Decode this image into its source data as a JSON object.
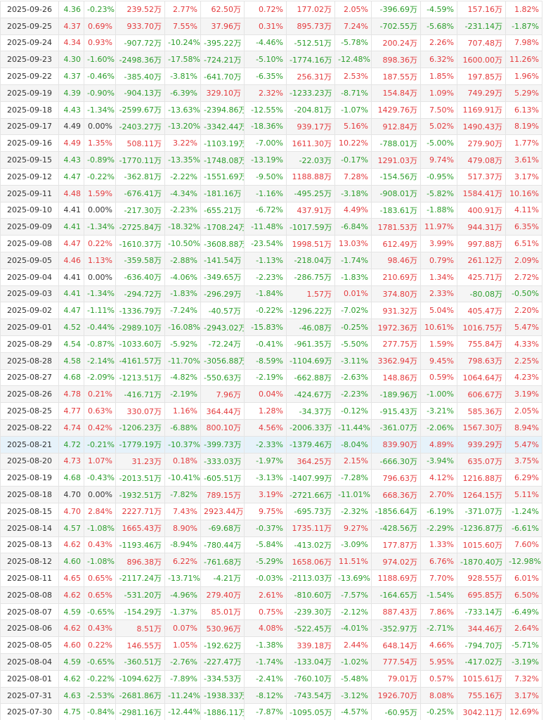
{
  "table": {
    "highlight_row": 26,
    "rows": [
      [
        "2025-09-26",
        "4.36",
        "-0.23%",
        "239.52万",
        "2.77%",
        "62.50万",
        "0.72%",
        "177.02万",
        "2.05%",
        "-396.69万",
        "-4.59%",
        "157.16万",
        "1.82%"
      ],
      [
        "2025-09-25",
        "4.37",
        "0.69%",
        "933.70万",
        "7.55%",
        "37.96万",
        "0.31%",
        "895.73万",
        "7.24%",
        "-702.55万",
        "-5.68%",
        "-231.14万",
        "-1.87%"
      ],
      [
        "2025-09-24",
        "4.34",
        "0.93%",
        "-907.72万",
        "-10.24%",
        "-395.22万",
        "-4.46%",
        "-512.51万",
        "-5.78%",
        "200.24万",
        "2.26%",
        "707.48万",
        "7.98%"
      ],
      [
        "2025-09-23",
        "4.30",
        "-1.60%",
        "-2498.36万",
        "-17.58%",
        "-724.21万",
        "-5.10%",
        "-1774.16万",
        "-12.48%",
        "898.36万",
        "6.32%",
        "1600.00万",
        "11.26%"
      ],
      [
        "2025-09-22",
        "4.37",
        "-0.46%",
        "-385.40万",
        "-3.81%",
        "-641.70万",
        "-6.35%",
        "256.31万",
        "2.53%",
        "187.55万",
        "1.85%",
        "197.85万",
        "1.96%"
      ],
      [
        "2025-09-19",
        "4.39",
        "-0.90%",
        "-904.13万",
        "-6.39%",
        "329.10万",
        "2.32%",
        "-1233.23万",
        "-8.71%",
        "154.84万",
        "1.09%",
        "749.29万",
        "5.29%"
      ],
      [
        "2025-09-18",
        "4.43",
        "-1.34%",
        "-2599.67万",
        "-13.63%",
        "-2394.86万",
        "-12.55%",
        "-204.81万",
        "-1.07%",
        "1429.76万",
        "7.50%",
        "1169.91万",
        "6.13%"
      ],
      [
        "2025-09-17",
        "4.49",
        "0.00%",
        "-2403.27万",
        "-13.20%",
        "-3342.44万",
        "-18.36%",
        "939.17万",
        "5.16%",
        "912.84万",
        "5.02%",
        "1490.43万",
        "8.19%"
      ],
      [
        "2025-09-16",
        "4.49",
        "1.35%",
        "508.11万",
        "3.22%",
        "-1103.19万",
        "-7.00%",
        "1611.30万",
        "10.22%",
        "-788.01万",
        "-5.00%",
        "279.90万",
        "1.77%"
      ],
      [
        "2025-09-15",
        "4.43",
        "-0.89%",
        "-1770.11万",
        "-13.35%",
        "-1748.08万",
        "-13.19%",
        "-22.03万",
        "-0.17%",
        "1291.03万",
        "9.74%",
        "479.08万",
        "3.61%"
      ],
      [
        "2025-09-12",
        "4.47",
        "-0.22%",
        "-362.81万",
        "-2.22%",
        "-1551.69万",
        "-9.50%",
        "1188.88万",
        "7.28%",
        "-154.56万",
        "-0.95%",
        "517.37万",
        "3.17%"
      ],
      [
        "2025-09-11",
        "4.48",
        "1.59%",
        "-676.41万",
        "-4.34%",
        "-181.16万",
        "-1.16%",
        "-495.25万",
        "-3.18%",
        "-908.01万",
        "-5.82%",
        "1584.41万",
        "10.16%"
      ],
      [
        "2025-09-10",
        "4.41",
        "0.00%",
        "-217.30万",
        "-2.23%",
        "-655.21万",
        "-6.72%",
        "437.91万",
        "4.49%",
        "-183.61万",
        "-1.88%",
        "400.91万",
        "4.11%"
      ],
      [
        "2025-09-09",
        "4.41",
        "-1.34%",
        "-2725.84万",
        "-18.32%",
        "-1708.24万",
        "-11.48%",
        "-1017.59万",
        "-6.84%",
        "1781.53万",
        "11.97%",
        "944.31万",
        "6.35%"
      ],
      [
        "2025-09-08",
        "4.47",
        "0.22%",
        "-1610.37万",
        "-10.50%",
        "-3608.88万",
        "-23.54%",
        "1998.51万",
        "13.03%",
        "612.49万",
        "3.99%",
        "997.88万",
        "6.51%"
      ],
      [
        "2025-09-05",
        "4.46",
        "1.13%",
        "-359.58万",
        "-2.88%",
        "-141.54万",
        "-1.13%",
        "-218.04万",
        "-1.74%",
        "98.46万",
        "0.79%",
        "261.12万",
        "2.09%"
      ],
      [
        "2025-09-04",
        "4.41",
        "0.00%",
        "-636.40万",
        "-4.06%",
        "-349.65万",
        "-2.23%",
        "-286.75万",
        "-1.83%",
        "210.69万",
        "1.34%",
        "425.71万",
        "2.72%"
      ],
      [
        "2025-09-03",
        "4.41",
        "-1.34%",
        "-294.72万",
        "-1.83%",
        "-296.29万",
        "-1.84%",
        "1.57万",
        "0.01%",
        "374.80万",
        "2.33%",
        "-80.08万",
        "-0.50%"
      ],
      [
        "2025-09-02",
        "4.47",
        "-1.11%",
        "-1336.79万",
        "-7.24%",
        "-40.57万",
        "-0.22%",
        "-1296.22万",
        "-7.02%",
        "931.32万",
        "5.04%",
        "405.47万",
        "2.20%"
      ],
      [
        "2025-09-01",
        "4.52",
        "-0.44%",
        "-2989.10万",
        "-16.08%",
        "-2943.02万",
        "-15.83%",
        "-46.08万",
        "-0.25%",
        "1972.36万",
        "10.61%",
        "1016.75万",
        "5.47%"
      ],
      [
        "2025-08-29",
        "4.54",
        "-0.87%",
        "-1033.60万",
        "-5.92%",
        "-72.24万",
        "-0.41%",
        "-961.35万",
        "-5.50%",
        "277.75万",
        "1.59%",
        "755.84万",
        "4.33%"
      ],
      [
        "2025-08-28",
        "4.58",
        "-2.14%",
        "-4161.57万",
        "-11.70%",
        "-3056.88万",
        "-8.59%",
        "-1104.69万",
        "-3.11%",
        "3362.94万",
        "9.45%",
        "798.63万",
        "2.25%"
      ],
      [
        "2025-08-27",
        "4.68",
        "-2.09%",
        "-1213.51万",
        "-4.82%",
        "-550.63万",
        "-2.19%",
        "-662.88万",
        "-2.63%",
        "148.86万",
        "0.59%",
        "1064.64万",
        "4.23%"
      ],
      [
        "2025-08-26",
        "4.78",
        "0.21%",
        "-416.71万",
        "-2.19%",
        "7.96万",
        "0.04%",
        "-424.67万",
        "-2.23%",
        "-189.96万",
        "-1.00%",
        "606.67万",
        "3.19%"
      ],
      [
        "2025-08-25",
        "4.77",
        "0.63%",
        "330.07万",
        "1.16%",
        "364.44万",
        "1.28%",
        "-34.37万",
        "-0.12%",
        "-915.43万",
        "-3.21%",
        "585.36万",
        "2.05%"
      ],
      [
        "2025-08-22",
        "4.74",
        "0.42%",
        "-1206.23万",
        "-6.88%",
        "800.10万",
        "4.56%",
        "-2006.33万",
        "-11.44%",
        "-361.07万",
        "-2.06%",
        "1567.30万",
        "8.94%"
      ],
      [
        "2025-08-21",
        "4.72",
        "-0.21%",
        "-1779.19万",
        "-10.37%",
        "-399.73万",
        "-2.33%",
        "-1379.46万",
        "-8.04%",
        "839.90万",
        "4.89%",
        "939.29万",
        "5.47%"
      ],
      [
        "2025-08-20",
        "4.73",
        "1.07%",
        "31.23万",
        "0.18%",
        "-333.03万",
        "-1.97%",
        "364.25万",
        "2.15%",
        "-666.30万",
        "-3.94%",
        "635.07万",
        "3.75%"
      ],
      [
        "2025-08-19",
        "4.68",
        "-0.43%",
        "-2013.51万",
        "-10.41%",
        "-605.51万",
        "-3.13%",
        "-1407.99万",
        "-7.28%",
        "796.63万",
        "4.12%",
        "1216.88万",
        "6.29%"
      ],
      [
        "2025-08-18",
        "4.70",
        "0.00%",
        "-1932.51万",
        "-7.82%",
        "789.15万",
        "3.19%",
        "-2721.66万",
        "-11.01%",
        "668.36万",
        "2.70%",
        "1264.15万",
        "5.11%"
      ],
      [
        "2025-08-15",
        "4.70",
        "2.84%",
        "2227.71万",
        "7.43%",
        "2923.44万",
        "9.75%",
        "-695.73万",
        "-2.32%",
        "-1856.64万",
        "-6.19%",
        "-371.07万",
        "-1.24%"
      ],
      [
        "2025-08-14",
        "4.57",
        "-1.08%",
        "1665.43万",
        "8.90%",
        "-69.68万",
        "-0.37%",
        "1735.11万",
        "9.27%",
        "-428.56万",
        "-2.29%",
        "-1236.87万",
        "-6.61%"
      ],
      [
        "2025-08-13",
        "4.62",
        "0.43%",
        "-1193.46万",
        "-8.94%",
        "-780.44万",
        "-5.84%",
        "-413.02万",
        "-3.09%",
        "177.87万",
        "1.33%",
        "1015.60万",
        "7.60%"
      ],
      [
        "2025-08-12",
        "4.60",
        "-1.08%",
        "896.38万",
        "6.22%",
        "-761.68万",
        "-5.29%",
        "1658.06万",
        "11.51%",
        "974.02万",
        "6.76%",
        "-1870.40万",
        "-12.98%"
      ],
      [
        "2025-08-11",
        "4.65",
        "0.65%",
        "-2117.24万",
        "-13.71%",
        "-4.21万",
        "-0.03%",
        "-2113.03万",
        "-13.69%",
        "1188.69万",
        "7.70%",
        "928.55万",
        "6.01%"
      ],
      [
        "2025-08-08",
        "4.62",
        "0.65%",
        "-531.20万",
        "-4.96%",
        "279.40万",
        "2.61%",
        "-810.60万",
        "-7.57%",
        "-164.65万",
        "-1.54%",
        "695.85万",
        "6.50%"
      ],
      [
        "2025-08-07",
        "4.59",
        "-0.65%",
        "-154.29万",
        "-1.37%",
        "85.01万",
        "0.75%",
        "-239.30万",
        "-2.12%",
        "887.43万",
        "7.86%",
        "-733.14万",
        "-6.49%"
      ],
      [
        "2025-08-06",
        "4.62",
        "0.43%",
        "8.51万",
        "0.07%",
        "530.96万",
        "4.08%",
        "-522.45万",
        "-4.01%",
        "-352.97万",
        "-2.71%",
        "344.46万",
        "2.64%"
      ],
      [
        "2025-08-05",
        "4.60",
        "0.22%",
        "146.55万",
        "1.05%",
        "-192.62万",
        "-1.38%",
        "339.18万",
        "2.44%",
        "648.14万",
        "4.66%",
        "-794.70万",
        "-5.71%"
      ],
      [
        "2025-08-04",
        "4.59",
        "-0.65%",
        "-360.51万",
        "-2.76%",
        "-227.47万",
        "-1.74%",
        "-133.04万",
        "-1.02%",
        "777.54万",
        "5.95%",
        "-417.02万",
        "-3.19%"
      ],
      [
        "2025-08-01",
        "4.62",
        "-0.22%",
        "-1094.62万",
        "-7.89%",
        "-334.53万",
        "-2.41%",
        "-760.10万",
        "-5.48%",
        "79.01万",
        "0.57%",
        "1015.61万",
        "7.32%"
      ],
      [
        "2025-07-31",
        "4.63",
        "-2.53%",
        "-2681.86万",
        "-11.24%",
        "-1938.33万",
        "-8.12%",
        "-743.54万",
        "-3.12%",
        "1926.70万",
        "8.08%",
        "755.16万",
        "3.17%"
      ],
      [
        "2025-07-30",
        "4.75",
        "-0.84%",
        "-2981.16万",
        "-12.44%",
        "-1886.11万",
        "-7.87%",
        "-1095.05万",
        "-4.57%",
        "-60.95万",
        "-0.25%",
        "3042.11万",
        "12.69%"
      ]
    ]
  }
}
